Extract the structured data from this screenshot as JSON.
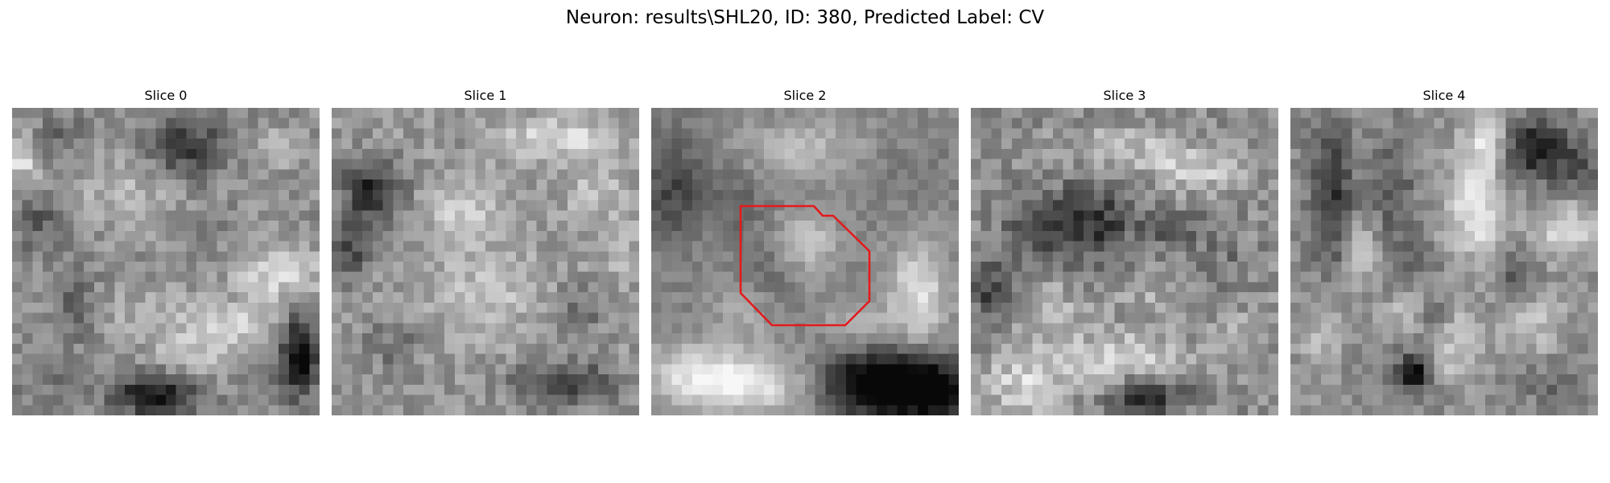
{
  "figure": {
    "title": "Neuron: results\\SHL20, ID: 380, Predicted Label: CV"
  },
  "slices": [
    {
      "title": "Slice 0",
      "has_roi": false
    },
    {
      "title": "Slice 1",
      "has_roi": false
    },
    {
      "title": "Slice 2",
      "has_roi": true
    },
    {
      "title": "Slice 3",
      "has_roi": false
    },
    {
      "title": "Slice 4",
      "has_roi": false
    }
  ],
  "roi": {
    "color": "#e31a1c",
    "slice_index": 2
  },
  "colormap": "gray"
}
